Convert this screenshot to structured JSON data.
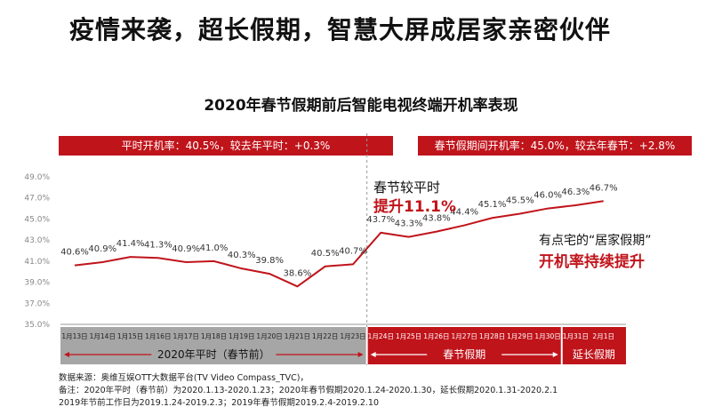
{
  "headline": "疫情来袭，超长假期，智慧大屏成居家亲密伙伴",
  "chart_data": {
    "type": "line",
    "title": "2020年春节假期前后智能电视终端开机率表现",
    "categories": [
      "1月13日",
      "1月14日",
      "1月15日",
      "1月16日",
      "1月17日",
      "1月18日",
      "1月19日",
      "1月20日",
      "1月21日",
      "1月22日",
      "1月23日",
      "1月24日",
      "1月25日",
      "1月26日",
      "1月27日",
      "1月28日",
      "1月29日",
      "1月30日",
      "1月31日",
      "2月1日"
    ],
    "values": [
      40.6,
      40.9,
      41.4,
      41.3,
      40.9,
      41.0,
      40.3,
      39.8,
      38.6,
      40.5,
      40.7,
      43.7,
      43.3,
      43.8,
      44.4,
      45.1,
      45.5,
      46.0,
      46.3,
      46.7
    ],
    "data_labels": [
      "40.6%",
      "40.9%",
      "41.4%",
      "41.3%",
      "40.9%",
      "41.0%",
      "40.3%",
      "39.8%",
      "38.6%",
      "40.5%",
      "40.7%",
      "43.7%",
      "43.3%",
      "43.8%",
      "44.4%",
      "45.1%",
      "45.5%",
      "46.0%",
      "46.3%",
      "46.7%"
    ],
    "ylim": [
      35.0,
      49.0
    ],
    "yticks": [
      "35.0%",
      "37.0%",
      "39.0%",
      "41.0%",
      "43.0%",
      "45.0%",
      "47.0%",
      "49.0%"
    ],
    "line_color": "#c0141b",
    "grid": false,
    "periods": [
      {
        "label": "2020年平时（春节前）",
        "start": 0,
        "end": 10,
        "color": "#a6a6a6"
      },
      {
        "label": "春节假期",
        "start": 11,
        "end": 17,
        "color": "#c0141b"
      },
      {
        "label": "延长假期",
        "start": 18,
        "end": 19,
        "color": "#c0141b"
      }
    ]
  },
  "summary_left": "平时开机率：40.5%，较去年平时：+0.3%",
  "summary_right": "春节假期间开机率：45.0%，较去年春节：+2.8%",
  "annotations": {
    "a1_line1": "春节较平时",
    "a1_line2": "提升11.1%",
    "a2_line1": "有点宅的“居家假期”",
    "a2_line2": "开机率持续提升"
  },
  "sources": [
    "数据来源：奥维互娱OTT大数据平台(TV Video Compass_TVC)，",
    "备注：2020年平时（春节前）为2020.1.13-2020.1.23；2020年春节假期2020.1.24-2020.1.30，延长假期2020.1.31-2020.2.1",
    "2019年节前工作日为2019.1.24-2019.2.3；2019年春节假期2019.2.4-2019.2.10"
  ],
  "colors": {
    "accent": "#c0141b",
    "grey_band": "#a6a6a6"
  }
}
